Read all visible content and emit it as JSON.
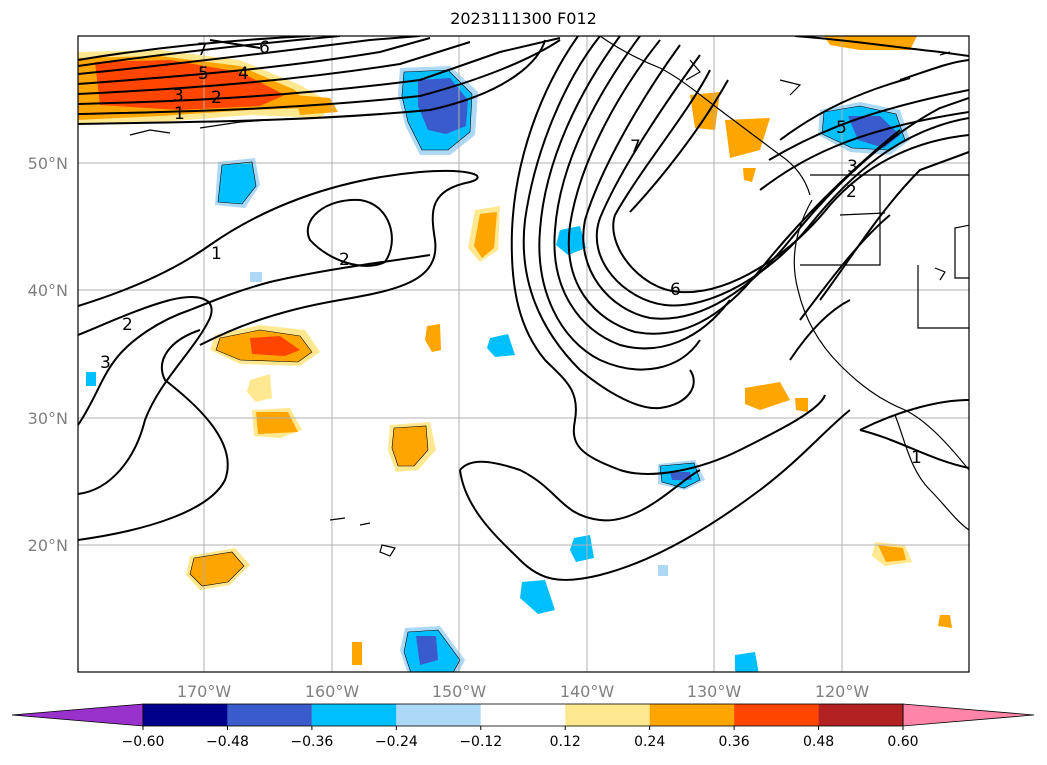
{
  "title": "2023111300 F012",
  "map": {
    "lat_labels": [
      "50°N",
      "40°N",
      "30°N",
      "20°N"
    ],
    "lon_labels": [
      "170°W",
      "160°W",
      "150°W",
      "140°W",
      "130°W",
      "120°W"
    ],
    "contour_labels": [
      "7",
      "6",
      "5",
      "4",
      "3",
      "2",
      "1",
      "1",
      "2",
      "2",
      "3",
      "7",
      "6",
      "5",
      "3",
      "2",
      "1"
    ]
  },
  "colorbar": {
    "ticks": [
      "−0.60",
      "−0.48",
      "−0.36",
      "−0.24",
      "−0.12",
      "0.12",
      "0.24",
      "0.36",
      "0.48",
      "0.60"
    ],
    "colors": [
      "#9932cc",
      "#00008b",
      "#3a5bcc",
      "#00bfff",
      "#add8f6",
      "#ffffff",
      "#ffe88f",
      "#ffa500",
      "#ff4500",
      "#b22222",
      "#ff85a8"
    ]
  }
}
